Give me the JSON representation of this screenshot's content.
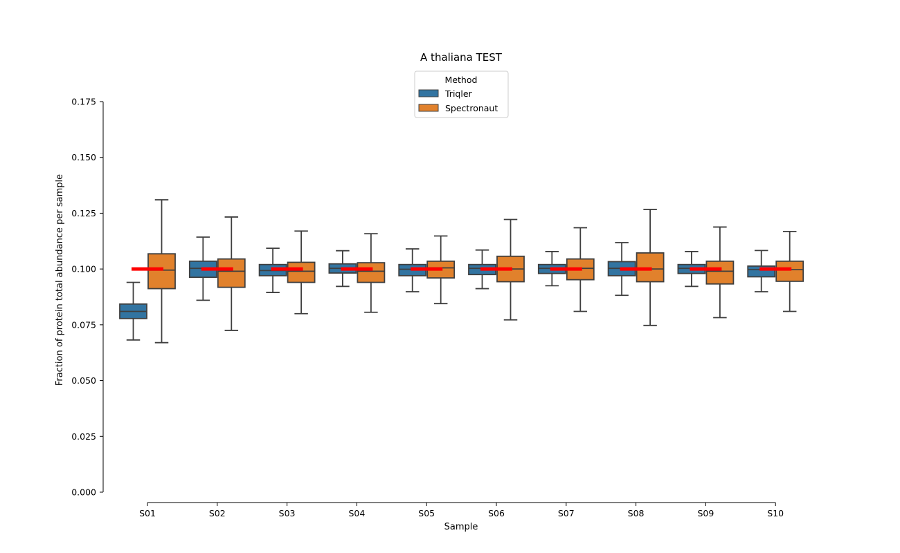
{
  "chart_data": {
    "type": "box",
    "title": "A thaliana TEST",
    "xlabel": "Sample",
    "ylabel": "Fraction of protein total abundance per sample",
    "ylim": [
      0.0,
      0.175
    ],
    "yticks": [
      "0.000",
      "0.025",
      "0.050",
      "0.075",
      "0.100",
      "0.125",
      "0.150",
      "0.175"
    ],
    "categories": [
      "S01",
      "S02",
      "S03",
      "S04",
      "S05",
      "S06",
      "S07",
      "S08",
      "S09",
      "S10"
    ],
    "legend": {
      "title": "Method",
      "position": "top-center"
    },
    "reference_value": 0.1,
    "reference_color": "#ff0000",
    "grid": false,
    "series": [
      {
        "name": "Triqler",
        "color": "#3274a1",
        "boxes": [
          {
            "whisker_low": 0.0682,
            "q1": 0.0778,
            "median": 0.081,
            "q3": 0.0843,
            "whisker_high": 0.094
          },
          {
            "whisker_low": 0.086,
            "q1": 0.0963,
            "median": 0.1003,
            "q3": 0.1035,
            "whisker_high": 0.1143
          },
          {
            "whisker_low": 0.0895,
            "q1": 0.097,
            "median": 0.0993,
            "q3": 0.102,
            "whisker_high": 0.1093
          },
          {
            "whisker_low": 0.0922,
            "q1": 0.0982,
            "median": 0.1003,
            "q3": 0.1023,
            "whisker_high": 0.1082
          },
          {
            "whisker_low": 0.0898,
            "q1": 0.097,
            "median": 0.0999,
            "q3": 0.102,
            "whisker_high": 0.109
          },
          {
            "whisker_low": 0.0912,
            "q1": 0.0975,
            "median": 0.1003,
            "q3": 0.102,
            "whisker_high": 0.1085
          },
          {
            "whisker_low": 0.0925,
            "q1": 0.098,
            "median": 0.1003,
            "q3": 0.102,
            "whisker_high": 0.1078
          },
          {
            "whisker_low": 0.0882,
            "q1": 0.097,
            "median": 0.1003,
            "q3": 0.1033,
            "whisker_high": 0.1118
          },
          {
            "whisker_low": 0.0922,
            "q1": 0.098,
            "median": 0.1003,
            "q3": 0.102,
            "whisker_high": 0.1078
          },
          {
            "whisker_low": 0.0898,
            "q1": 0.0965,
            "median": 0.0997,
            "q3": 0.1013,
            "whisker_high": 0.1083
          }
        ]
      },
      {
        "name": "Spectronaut",
        "color": "#e1812c",
        "boxes": [
          {
            "whisker_low": 0.067,
            "q1": 0.0912,
            "median": 0.0995,
            "q3": 0.1068,
            "whisker_high": 0.131
          },
          {
            "whisker_low": 0.0725,
            "q1": 0.0918,
            "median": 0.099,
            "q3": 0.1045,
            "whisker_high": 0.1233
          },
          {
            "whisker_low": 0.08,
            "q1": 0.094,
            "median": 0.099,
            "q3": 0.103,
            "whisker_high": 0.117
          },
          {
            "whisker_low": 0.0806,
            "q1": 0.094,
            "median": 0.099,
            "q3": 0.1028,
            "whisker_high": 0.1158
          },
          {
            "whisker_low": 0.0845,
            "q1": 0.096,
            "median": 0.1005,
            "q3": 0.1035,
            "whisker_high": 0.1148
          },
          {
            "whisker_low": 0.0772,
            "q1": 0.0943,
            "median": 0.1,
            "q3": 0.1057,
            "whisker_high": 0.1222
          },
          {
            "whisker_low": 0.081,
            "q1": 0.0952,
            "median": 0.1003,
            "q3": 0.1045,
            "whisker_high": 0.1185
          },
          {
            "whisker_low": 0.0747,
            "q1": 0.0943,
            "median": 0.1,
            "q3": 0.1072,
            "whisker_high": 0.1267
          },
          {
            "whisker_low": 0.0782,
            "q1": 0.0933,
            "median": 0.099,
            "q3": 0.1035,
            "whisker_high": 0.1188
          },
          {
            "whisker_low": 0.081,
            "q1": 0.0945,
            "median": 0.0997,
            "q3": 0.1035,
            "whisker_high": 0.1168
          }
        ]
      }
    ]
  }
}
